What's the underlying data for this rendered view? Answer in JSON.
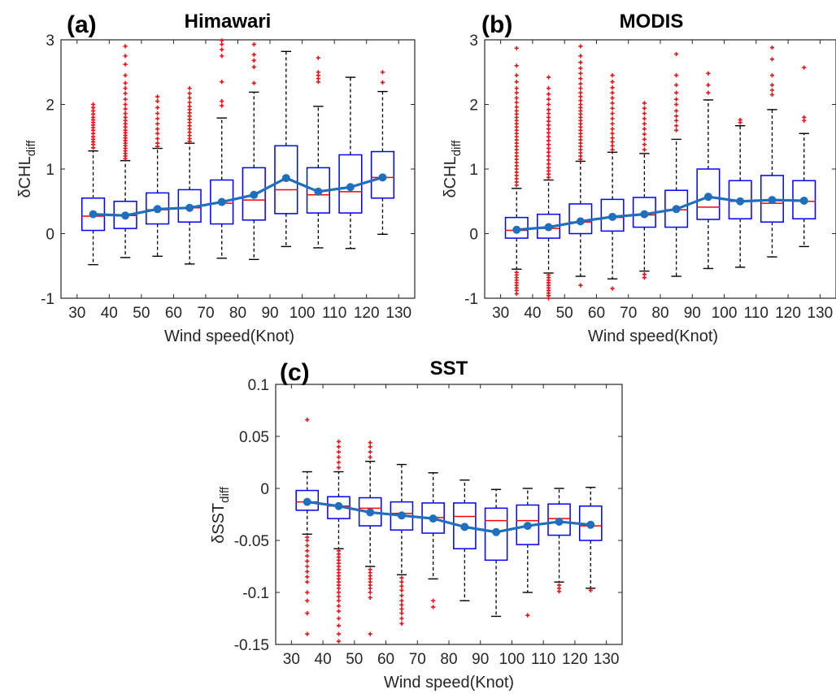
{
  "chart_data": [
    {
      "type": "box",
      "panel": "(a)",
      "title": "Himawari",
      "xlabel": "Wind speed(Knot)",
      "ylabel": "δCHL",
      "ylabel_sub": "diff",
      "xlim": [
        25,
        135
      ],
      "ylim": [
        -1,
        3
      ],
      "xticks": [
        30,
        40,
        50,
        60,
        70,
        80,
        90,
        100,
        110,
        120,
        130
      ],
      "yticks": [
        -1,
        0,
        1,
        2,
        3
      ],
      "ytick_labels": [
        "-1",
        "0",
        "1",
        "2",
        "3"
      ],
      "box_color": "#0000ff",
      "median_color": "#ff0000",
      "outlier_color": "#e8141b",
      "mean_line_color": "#1f6fbf",
      "boxes": [
        {
          "x": 35,
          "lower_whisker": -0.48,
          "q1": 0.05,
          "median": 0.27,
          "q3": 0.55,
          "upper_whisker": 1.28,
          "mean": 0.3,
          "outliers": [
            1.33,
            1.38,
            1.42,
            1.46,
            1.5,
            1.55,
            1.6,
            1.64,
            1.68,
            1.72,
            1.76,
            1.8,
            1.85,
            1.9,
            1.95,
            2.0
          ]
        },
        {
          "x": 45,
          "lower_whisker": -0.37,
          "q1": 0.08,
          "median": 0.28,
          "q3": 0.5,
          "upper_whisker": 1.13,
          "mean": 0.28,
          "outliers": [
            1.16,
            1.2,
            1.24,
            1.28,
            1.32,
            1.36,
            1.4,
            1.44,
            1.48,
            1.52,
            1.56,
            1.6,
            1.65,
            1.7,
            1.75,
            1.8,
            1.86,
            1.93,
            2.0,
            2.08,
            2.17,
            2.25,
            2.33,
            2.45,
            2.62,
            2.75,
            2.9
          ]
        },
        {
          "x": 55,
          "lower_whisker": -0.35,
          "q1": 0.15,
          "median": 0.37,
          "q3": 0.63,
          "upper_whisker": 1.32,
          "mean": 0.38,
          "outliers": [
            1.35,
            1.4,
            1.47,
            1.55,
            1.62,
            1.7,
            1.78,
            1.86,
            1.95,
            2.05,
            2.12
          ]
        },
        {
          "x": 65,
          "lower_whisker": -0.47,
          "q1": 0.18,
          "median": 0.4,
          "q3": 0.68,
          "upper_whisker": 1.4,
          "mean": 0.4,
          "outliers": [
            1.43,
            1.47,
            1.52,
            1.57,
            1.62,
            1.67,
            1.72,
            1.77,
            1.82,
            1.87,
            1.92,
            1.97,
            2.03,
            2.1,
            2.17,
            2.25
          ]
        },
        {
          "x": 75,
          "lower_whisker": -0.38,
          "q1": 0.15,
          "median": 0.47,
          "q3": 0.83,
          "upper_whisker": 1.79,
          "mean": 0.49,
          "outliers": [
            1.98,
            2.05,
            2.35,
            2.75,
            2.85,
            2.93,
            2.99
          ]
        },
        {
          "x": 85,
          "lower_whisker": -0.4,
          "q1": 0.21,
          "median": 0.52,
          "q3": 1.02,
          "upper_whisker": 2.19,
          "mean": 0.6,
          "outliers": [
            2.33,
            2.58,
            2.68,
            2.77,
            2.93
          ]
        },
        {
          "x": 95,
          "lower_whisker": -0.2,
          "q1": 0.31,
          "median": 0.68,
          "q3": 1.36,
          "upper_whisker": 2.82,
          "mean": 0.86,
          "outliers": []
        },
        {
          "x": 105,
          "lower_whisker": -0.22,
          "q1": 0.32,
          "median": 0.6,
          "q3": 1.02,
          "upper_whisker": 1.97,
          "mean": 0.65,
          "outliers": [
            2.35,
            2.4,
            2.45,
            2.5,
            2.72
          ]
        },
        {
          "x": 115,
          "lower_whisker": -0.23,
          "q1": 0.32,
          "median": 0.65,
          "q3": 1.22,
          "upper_whisker": 2.42,
          "mean": 0.72,
          "outliers": []
        },
        {
          "x": 125,
          "lower_whisker": -0.01,
          "q1": 0.55,
          "median": 0.87,
          "q3": 1.27,
          "upper_whisker": 2.2,
          "mean": 0.87,
          "outliers": [
            2.34,
            2.5
          ]
        }
      ]
    },
    {
      "type": "box",
      "panel": "(b)",
      "title": "MODIS",
      "xlabel": "Wind speed(Knot)",
      "ylabel": "δCHL",
      "ylabel_sub": "diff",
      "xlim": [
        25,
        135
      ],
      "ylim": [
        -1,
        3
      ],
      "xticks": [
        30,
        40,
        50,
        60,
        70,
        80,
        90,
        100,
        110,
        120,
        130
      ],
      "yticks": [
        -1,
        0,
        1,
        2,
        3
      ],
      "ytick_labels": [
        "-1",
        "0",
        "1",
        "2",
        "3"
      ],
      "box_color": "#0000ff",
      "median_color": "#ff0000",
      "outlier_color": "#e8141b",
      "mean_line_color": "#1f6fbf",
      "boxes": [
        {
          "x": 35,
          "lower_whisker": -0.55,
          "q1": -0.07,
          "median": 0.05,
          "q3": 0.25,
          "upper_whisker": 0.7,
          "mean": 0.06,
          "outliers": [
            -0.6,
            -0.64,
            -0.68,
            -0.72,
            -0.76,
            -0.8,
            -0.84,
            -0.88,
            -0.93,
            0.75,
            0.8,
            0.85,
            0.9,
            0.95,
            1.0,
            1.05,
            1.1,
            1.15,
            1.2,
            1.25,
            1.3,
            1.35,
            1.4,
            1.45,
            1.5,
            1.55,
            1.6,
            1.65,
            1.7,
            1.75,
            1.8,
            1.85,
            1.9,
            1.96,
            2.03,
            2.1,
            2.18,
            2.25,
            2.35,
            2.45,
            2.6,
            2.87
          ]
        },
        {
          "x": 45,
          "lower_whisker": -0.61,
          "q1": -0.07,
          "median": 0.08,
          "q3": 0.3,
          "upper_whisker": 0.83,
          "mean": 0.1,
          "outliers": [
            -0.64,
            -0.68,
            -0.72,
            -0.76,
            -0.8,
            -0.84,
            -0.88,
            -0.92,
            -0.96,
            -1.0,
            0.87,
            0.92,
            0.97,
            1.02,
            1.08,
            1.14,
            1.2,
            1.26,
            1.32,
            1.38,
            1.44,
            1.5,
            1.56,
            1.62,
            1.68,
            1.74,
            1.8,
            1.86,
            1.92,
            2.0,
            2.08,
            2.16,
            2.25,
            2.42
          ]
        },
        {
          "x": 55,
          "lower_whisker": -0.66,
          "q1": 0.0,
          "median": 0.18,
          "q3": 0.46,
          "upper_whisker": 1.12,
          "mean": 0.19,
          "outliers": [
            -0.8,
            1.15,
            1.2,
            1.25,
            1.3,
            1.35,
            1.4,
            1.45,
            1.5,
            1.55,
            1.6,
            1.65,
            1.7,
            1.75,
            1.8,
            1.85,
            1.9,
            1.95,
            2.0,
            2.06,
            2.12,
            2.18,
            2.25,
            2.32,
            2.4,
            2.48,
            2.56,
            2.65,
            2.75,
            2.9
          ]
        },
        {
          "x": 65,
          "lower_whisker": -0.7,
          "q1": 0.04,
          "median": 0.25,
          "q3": 0.53,
          "upper_whisker": 1.26,
          "mean": 0.26,
          "outliers": [
            -0.85,
            1.3,
            1.36,
            1.42,
            1.48,
            1.55,
            1.62,
            1.7,
            1.78,
            1.86,
            1.94,
            2.02,
            2.1,
            2.18,
            2.26,
            2.35,
            2.45
          ]
        },
        {
          "x": 75,
          "lower_whisker": -0.58,
          "q1": 0.1,
          "median": 0.29,
          "q3": 0.56,
          "upper_whisker": 1.24,
          "mean": 0.3,
          "outliers": [
            -0.63,
            -0.68,
            1.3,
            1.38,
            1.46,
            1.54,
            1.62,
            1.7,
            1.78,
            1.86,
            1.94,
            2.02
          ]
        },
        {
          "x": 85,
          "lower_whisker": -0.66,
          "q1": 0.1,
          "median": 0.37,
          "q3": 0.67,
          "upper_whisker": 1.46,
          "mean": 0.38,
          "outliers": [
            1.6,
            1.67,
            1.75,
            1.82,
            1.9,
            2.0,
            2.08,
            2.18,
            2.3,
            2.45,
            2.78
          ]
        },
        {
          "x": 95,
          "lower_whisker": -0.54,
          "q1": 0.22,
          "median": 0.41,
          "q3": 1.0,
          "upper_whisker": 2.07,
          "mean": 0.57,
          "outliers": [
            2.18,
            2.3,
            2.48
          ]
        },
        {
          "x": 105,
          "lower_whisker": -0.52,
          "q1": 0.23,
          "median": 0.5,
          "q3": 0.82,
          "upper_whisker": 1.67,
          "mean": 0.5,
          "outliers": [
            1.72,
            1.76
          ]
        },
        {
          "x": 115,
          "lower_whisker": -0.36,
          "q1": 0.18,
          "median": 0.47,
          "q3": 0.9,
          "upper_whisker": 1.92,
          "mean": 0.52,
          "outliers": [
            2.15,
            2.22,
            2.3,
            2.45,
            2.7,
            2.88
          ]
        },
        {
          "x": 125,
          "lower_whisker": -0.2,
          "q1": 0.23,
          "median": 0.5,
          "q3": 0.82,
          "upper_whisker": 1.55,
          "mean": 0.51,
          "outliers": [
            1.75,
            1.8,
            2.57
          ]
        }
      ]
    },
    {
      "type": "box",
      "panel": "(c)",
      "title": "SST",
      "xlabel": "Wind speed(Knot)",
      "ylabel": "δSST",
      "ylabel_sub": "diff",
      "xlim": [
        25,
        135
      ],
      "ylim": [
        -0.15,
        0.1
      ],
      "xticks": [
        30,
        40,
        50,
        60,
        70,
        80,
        90,
        100,
        110,
        120,
        130
      ],
      "yticks": [
        -0.15,
        -0.1,
        -0.05,
        0,
        0.05,
        0.1
      ],
      "ytick_labels": [
        "-0.15",
        "-0.1",
        "-0.05",
        "0",
        "0.05",
        "0.1"
      ],
      "box_color": "#0000ff",
      "median_color": "#ff0000",
      "outlier_color": "#e8141b",
      "mean_line_color": "#1f6fbf",
      "boxes": [
        {
          "x": 35,
          "lower_whisker": -0.044,
          "q1": -0.021,
          "median": -0.013,
          "q3": -0.002,
          "upper_whisker": 0.016,
          "mean": -0.013,
          "outliers": [
            -0.047,
            -0.05,
            -0.055,
            -0.06,
            -0.065,
            -0.07,
            -0.075,
            -0.08,
            -0.085,
            -0.09,
            -0.1,
            -0.108,
            -0.12,
            -0.14,
            0.066
          ]
        },
        {
          "x": 45,
          "lower_whisker": -0.058,
          "q1": -0.029,
          "median": -0.017,
          "q3": -0.008,
          "upper_whisker": 0.016,
          "mean": -0.017,
          "outliers": [
            -0.06,
            -0.063,
            -0.066,
            -0.069,
            -0.072,
            -0.075,
            -0.078,
            -0.081,
            -0.084,
            -0.087,
            -0.09,
            -0.093,
            -0.096,
            -0.1,
            -0.104,
            -0.108,
            -0.113,
            -0.118,
            -0.125,
            -0.132,
            -0.14,
            -0.147,
            0.02,
            0.025,
            0.03,
            0.035,
            0.04,
            0.045
          ]
        },
        {
          "x": 55,
          "lower_whisker": -0.075,
          "q1": -0.036,
          "median": -0.019,
          "q3": -0.009,
          "upper_whisker": 0.026,
          "mean": -0.023,
          "outliers": [
            -0.078,
            -0.081,
            -0.084,
            -0.087,
            -0.09,
            -0.093,
            -0.096,
            -0.1,
            -0.105,
            -0.14,
            0.03,
            0.035,
            0.04,
            0.044
          ]
        },
        {
          "x": 65,
          "lower_whisker": -0.083,
          "q1": -0.04,
          "median": -0.024,
          "q3": -0.013,
          "upper_whisker": 0.023,
          "mean": -0.026,
          "outliers": [
            -0.086,
            -0.09,
            -0.094,
            -0.098,
            -0.103,
            -0.108,
            -0.112,
            -0.116,
            -0.12,
            -0.125,
            -0.13
          ]
        },
        {
          "x": 75,
          "lower_whisker": -0.087,
          "q1": -0.043,
          "median": -0.028,
          "q3": -0.014,
          "upper_whisker": 0.015,
          "mean": -0.029,
          "outliers": [
            -0.108,
            -0.114
          ]
        },
        {
          "x": 85,
          "lower_whisker": -0.108,
          "q1": -0.058,
          "median": -0.027,
          "q3": -0.014,
          "upper_whisker": 0.008,
          "mean": -0.037,
          "outliers": []
        },
        {
          "x": 95,
          "lower_whisker": -0.123,
          "q1": -0.069,
          "median": -0.031,
          "q3": -0.019,
          "upper_whisker": -0.001,
          "mean": -0.042,
          "outliers": []
        },
        {
          "x": 105,
          "lower_whisker": -0.1,
          "q1": -0.054,
          "median": -0.031,
          "q3": -0.016,
          "upper_whisker": 0.0,
          "mean": -0.036,
          "outliers": [
            -0.122
          ]
        },
        {
          "x": 115,
          "lower_whisker": -0.09,
          "q1": -0.045,
          "median": -0.029,
          "q3": -0.015,
          "upper_whisker": 0.0,
          "mean": -0.032,
          "outliers": [
            -0.093,
            -0.096,
            -0.099
          ]
        },
        {
          "x": 125,
          "lower_whisker": -0.096,
          "q1": -0.05,
          "median": -0.036,
          "q3": -0.017,
          "upper_whisker": 0.001,
          "mean": -0.035,
          "outliers": [
            -0.098
          ]
        }
      ]
    }
  ]
}
